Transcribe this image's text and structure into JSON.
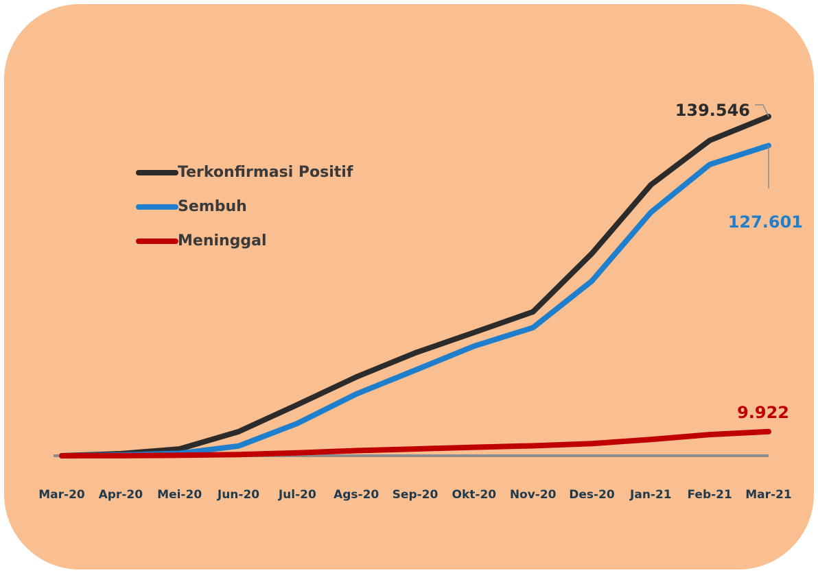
{
  "chart_data": {
    "type": "line",
    "categories": [
      "Mar-20",
      "Apr-20",
      "Mei-20",
      "Jun-20",
      "Jul-20",
      "Ags-20",
      "Sep-20",
      "Okt-20",
      "Nov-20",
      "Des-20",
      "Jan-21",
      "Feb-21",
      "Mar-21"
    ],
    "series": [
      {
        "name": "Terkonfirmasi Positif",
        "color": "#2b2b2b",
        "values": [
          0,
          850,
          2800,
          9900,
          21000,
          32400,
          42300,
          50700,
          59200,
          83200,
          111400,
          129700,
          139546
        ],
        "value_labels": [
          null,
          null,
          null,
          null,
          null,
          null,
          null,
          null,
          null,
          null,
          null,
          null,
          "139.546"
        ]
      },
      {
        "name": "Sembuh",
        "color": "#1f7fcc",
        "values": [
          0,
          300,
          1000,
          4000,
          13300,
          25400,
          35200,
          45100,
          52700,
          71900,
          100100,
          119800,
          127601
        ],
        "value_labels": [
          null,
          null,
          null,
          null,
          null,
          null,
          null,
          null,
          null,
          null,
          null,
          null,
          "127.601"
        ]
      },
      {
        "name": "Meninggal",
        "color": "#c00000",
        "values": [
          0,
          50,
          200,
          500,
          1200,
          2100,
          2800,
          3500,
          4100,
          5000,
          6700,
          8700,
          9922
        ],
        "value_labels": [
          null,
          null,
          null,
          null,
          null,
          null,
          null,
          null,
          null,
          null,
          null,
          null,
          "9.922"
        ]
      }
    ],
    "legend": "upper-left"
  }
}
